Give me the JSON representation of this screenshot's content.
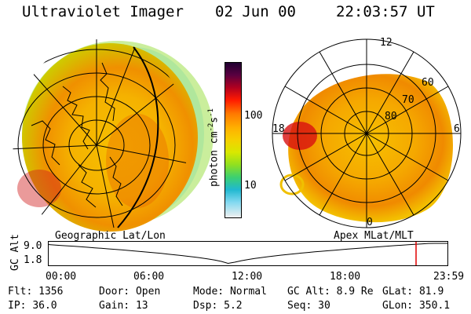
{
  "header": {
    "title": "Ultraviolet Imager",
    "date": "02 Jun 00",
    "time": "22:03:57 UT"
  },
  "colorbar": {
    "label": "photon cm",
    "label_sup1": "-2",
    "label_mid": "s",
    "label_sup2": "-1",
    "ticks": [
      "100",
      "10"
    ]
  },
  "left_panel": {
    "caption": "Geographic Lat/Lon"
  },
  "right_panel": {
    "caption": "Apex MLat/MLT",
    "mlt_labels": {
      "top": "12",
      "left": "18",
      "right": "6",
      "bottom": "0"
    },
    "lat_labels": [
      "60",
      "70",
      "80"
    ]
  },
  "altitude_plot": {
    "ylabel": "GC Alt",
    "yticks": [
      "9.0",
      "1.8"
    ],
    "xticks": [
      "00:00",
      "06:00",
      "12:00",
      "18:00",
      "23:59"
    ],
    "min_hour": 10.9,
    "current_hour": 22.07,
    "marker_color": "#e00000"
  },
  "status": {
    "row1": [
      {
        "label": "Flt:",
        "value": "1356"
      },
      {
        "label": "Door:",
        "value": "Open"
      },
      {
        "label": "Mode:",
        "value": "Normal"
      },
      {
        "label": "GC Alt:",
        "value": "8.9 Re"
      },
      {
        "label": "GLat:",
        "value": "81.9"
      }
    ],
    "row2": [
      {
        "label": "IP:",
        "value": "36.0"
      },
      {
        "label": "Gain:",
        "value": "13"
      },
      {
        "label": "Dsp:",
        "value": "5.2"
      },
      {
        "label": "Seq:",
        "value": "30"
      },
      {
        "label": "GLon:",
        "value": "350.1"
      }
    ]
  }
}
